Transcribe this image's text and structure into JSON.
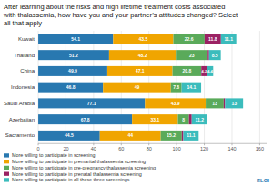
{
  "chart_data": {
    "type": "bar",
    "orientation": "horizontal",
    "stacked": true,
    "title": "After learning about the risks and high lifetime treatment costs associated\nwith thalassemia, how have you and your partner’s attitudes changed? Select\nall that apply",
    "categories": [
      "Kuwait",
      "Thailand",
      "China",
      "Indonesia",
      "Saudi Arabia",
      "Azerbaijan",
      "Sacramento"
    ],
    "series": [
      {
        "name": "More willing to participate in screening",
        "color": "#2878b0",
        "values": [
          54.1,
          51.2,
          49.9,
          46.8,
          77.1,
          67.8,
          44.5
        ],
        "value_labels": [
          "54.1",
          "51.2",
          "49.9",
          "46.8",
          "77.1",
          "67.8",
          "44.5"
        ]
      },
      {
        "name": "More willing to participate in premarital thalassemia screening",
        "color": "#f0a500",
        "values": [
          43.5,
          48.2,
          47.1,
          49,
          43.9,
          33.1,
          44
        ],
        "value_labels": [
          "43.5",
          "48.2",
          "47.1",
          "49",
          "43.9",
          "33.1",
          "44"
        ]
      },
      {
        "name": "More willing to participate in pre-pregnancy thalassemia screening",
        "color": "#5aaa5a",
        "values": [
          22.6,
          23,
          20.8,
          7.8,
          13,
          8,
          15.2
        ],
        "value_labels": [
          "22.6",
          "23",
          "20.8",
          "7.8",
          "13",
          "8",
          "15.2"
        ]
      },
      {
        "name": "More willing to participate in prenatal thalassemia screening",
        "color": "#9b2263",
        "values": [
          11.8,
          1,
          4.2,
          0,
          1,
          2,
          1.1
        ],
        "value_labels": [
          "11.8",
          null,
          "4.2",
          null,
          null,
          null,
          null
        ]
      },
      {
        "name": "More willing to participate in all these three screenings",
        "color": "#3bbcbc",
        "values": [
          11.1,
          8.5,
          4.4,
          14.1,
          13,
          11.2,
          11.1
        ],
        "value_labels": [
          "11.1",
          "8.5",
          "4.4",
          "14.1",
          "13",
          "11.2",
          "11.1"
        ]
      }
    ],
    "xlim": [
      0,
      165
    ],
    "xticks": [
      0,
      20,
      40,
      60,
      80,
      100,
      120,
      140,
      160
    ],
    "grid": true,
    "data_labels": true,
    "legend": "bottom",
    "annotations": [
      "ELGI"
    ]
  }
}
